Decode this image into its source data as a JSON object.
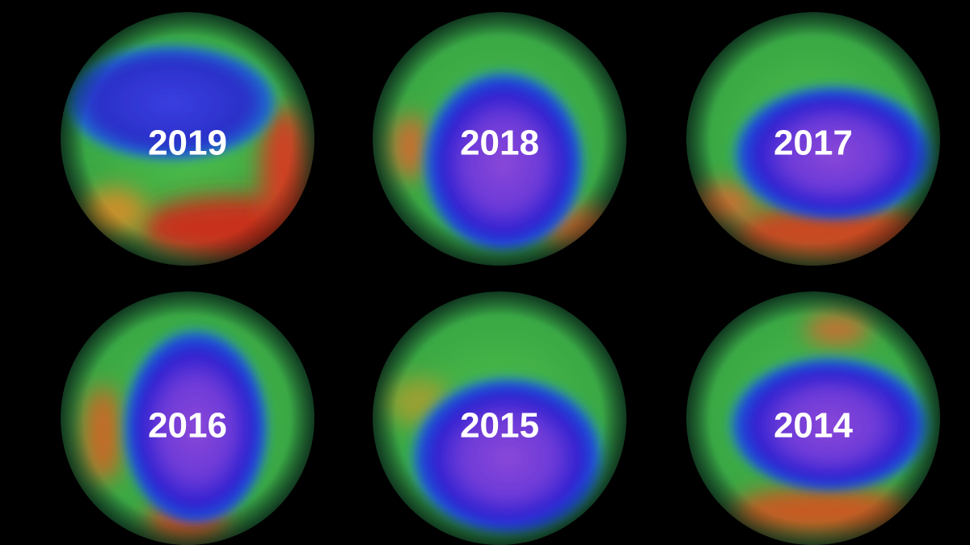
{
  "panels": [
    {
      "label": "2019"
    },
    {
      "label": "2018"
    },
    {
      "label": "2017"
    },
    {
      "label": "2016"
    },
    {
      "label": "2015"
    },
    {
      "label": "2014"
    }
  ]
}
